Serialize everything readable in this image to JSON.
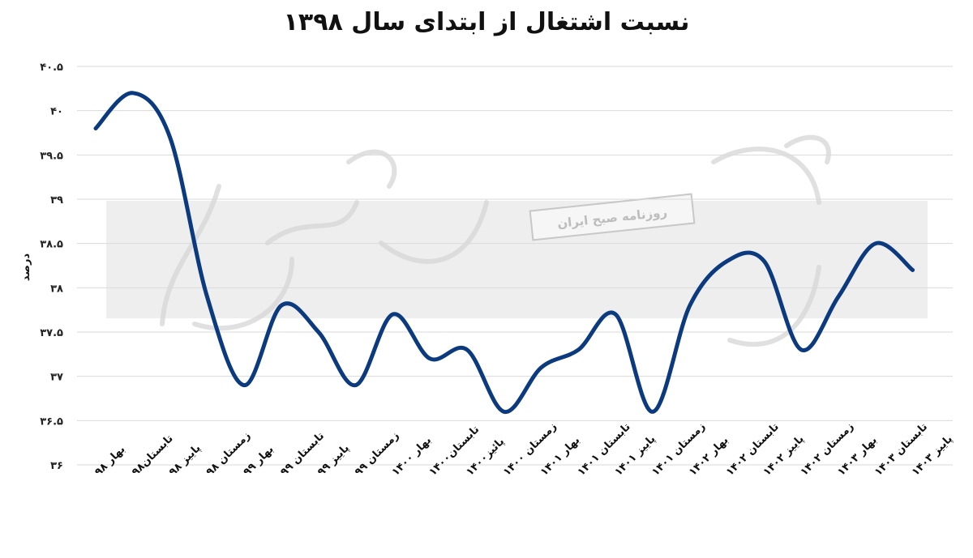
{
  "chart_data": {
    "type": "line",
    "title": "نسبت  اشتغال از ابتدای  سال ۱۳۹۸",
    "ylabel": "درصد",
    "ylim": [
      36,
      40.5
    ],
    "yticks": [
      "۳۶",
      "۳۶.۵",
      "۳۷",
      "۳۷.۵",
      "۳۸",
      "۳۸.۵",
      "۳۹",
      "۳۹.۵",
      "۴۰",
      "۴۰.۵"
    ],
    "ytick_values": [
      36,
      36.5,
      37,
      37.5,
      38,
      38.5,
      39,
      39.5,
      40,
      40.5
    ],
    "grid": true,
    "color": "#0b3a7e",
    "categories": [
      "بهار ۹۸",
      "تابستان۹۸",
      "پاییز ۹۸",
      "زمستان ۹۸",
      "بهار ۹۹",
      "تابستان ۹۹",
      "پاییز ۹۹",
      "زمستان ۹۹",
      "بهار ۱۴۰۰",
      "تابستان۱۴۰۰",
      "پائیز۱۴۰۰",
      "زمستان ۱۴۰۰",
      "بهار ۱۴۰۱",
      "تابستان ۱۴۰۱",
      "پاییز ۱۴۰۱",
      "زمستان ۱۴۰۱",
      "بهار ۱۴۰۲",
      "تابستان ۱۴۰۲",
      "پاییز ۱۴۰۲",
      "زمستان ۱۴۰۲",
      "بهار ۱۴۰۳",
      "تابستان ۱۴۰۳",
      "پاییز ۱۴۰۳"
    ],
    "values": [
      39.8,
      40.2,
      39.7,
      37.9,
      36.9,
      37.8,
      37.5,
      36.9,
      37.7,
      37.2,
      37.3,
      36.6,
      37.1,
      37.3,
      37.7,
      36.6,
      37.8,
      38.3,
      38.3,
      37.3,
      37.9,
      38.5,
      38.2
    ]
  },
  "watermark": {
    "text": "روزنامه صبح ایران",
    "logo": "دنیای اقتصاد"
  }
}
